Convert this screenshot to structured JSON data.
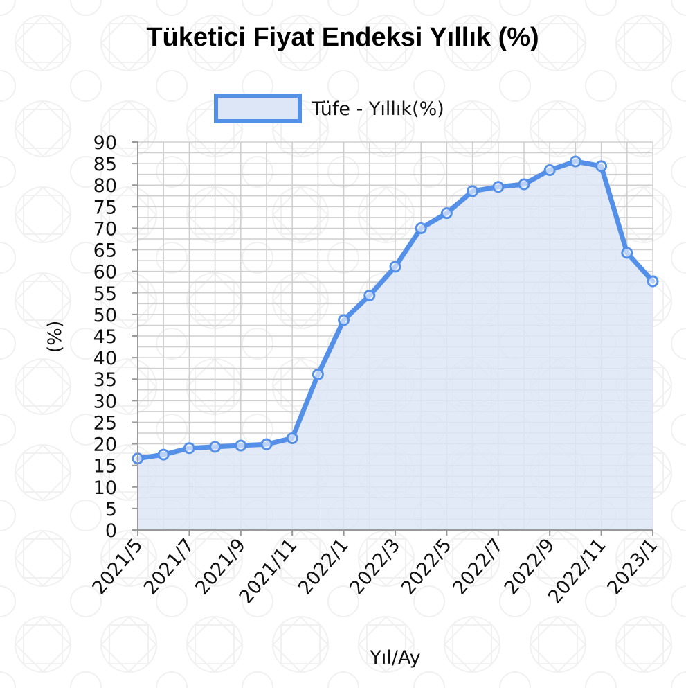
{
  "chart_data": {
    "type": "area",
    "title": "Tüketici Fiyat Endeksi Yıllık (%)",
    "xlabel": "Yıl/Ay",
    "ylabel": "(%)",
    "legend_position": "top-center",
    "grid": true,
    "ylim": [
      0,
      90
    ],
    "ytick_step": 5,
    "x_tick_labels": [
      "2021/5",
      "2021/7",
      "2021/9",
      "2021/11",
      "2022/1",
      "2022/3",
      "2022/5",
      "2022/7",
      "2022/9",
      "2022/11",
      "2023/1"
    ],
    "categories": [
      "2021/5",
      "2021/6",
      "2021/7",
      "2021/8",
      "2021/9",
      "2021/10",
      "2021/11",
      "2021/12",
      "2022/1",
      "2022/2",
      "2022/3",
      "2022/4",
      "2022/5",
      "2022/6",
      "2022/7",
      "2022/8",
      "2022/9",
      "2022/10",
      "2022/11",
      "2022/12",
      "2023/1"
    ],
    "series": [
      {
        "name": "Tüfe - Yıllık(%)",
        "color": "#5590e8",
        "fill": "#dde6f7",
        "values": [
          16.6,
          17.5,
          19.0,
          19.3,
          19.6,
          19.9,
          21.3,
          36.1,
          48.7,
          54.4,
          61.1,
          70.0,
          73.5,
          78.6,
          79.6,
          80.2,
          83.5,
          85.5,
          84.4,
          64.3,
          57.7
        ]
      }
    ]
  }
}
